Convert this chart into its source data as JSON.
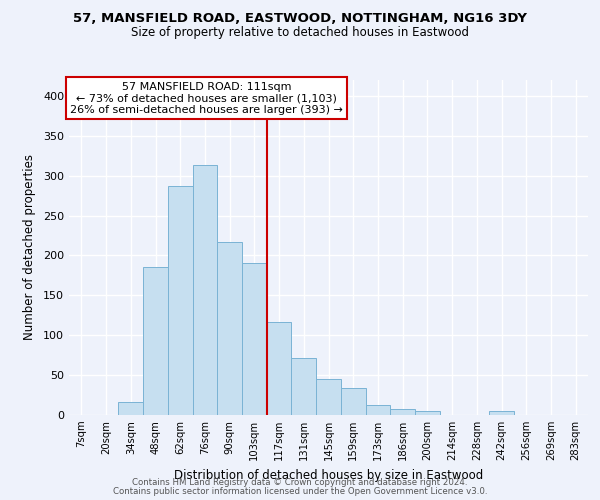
{
  "title1": "57, MANSFIELD ROAD, EASTWOOD, NOTTINGHAM, NG16 3DY",
  "title2": "Size of property relative to detached houses in Eastwood",
  "xlabel": "Distribution of detached houses by size in Eastwood",
  "ylabel": "Number of detached properties",
  "bin_labels": [
    "7sqm",
    "20sqm",
    "34sqm",
    "48sqm",
    "62sqm",
    "76sqm",
    "90sqm",
    "103sqm",
    "117sqm",
    "131sqm",
    "145sqm",
    "159sqm",
    "173sqm",
    "186sqm",
    "200sqm",
    "214sqm",
    "228sqm",
    "242sqm",
    "256sqm",
    "269sqm",
    "283sqm"
  ],
  "bar_heights": [
    0,
    0,
    16,
    185,
    287,
    314,
    217,
    191,
    116,
    72,
    45,
    34,
    12,
    7,
    5,
    0,
    0,
    5,
    0,
    0,
    0
  ],
  "bar_color": "#c6dff0",
  "bar_edge_color": "#7ab3d4",
  "vline_x_index": 7.5,
  "vline_color": "#cc0000",
  "annotation_box_text": "57 MANSFIELD ROAD: 111sqm\n← 73% of detached houses are smaller (1,103)\n26% of semi-detached houses are larger (393) →",
  "ylim": [
    0,
    420
  ],
  "yticks": [
    0,
    50,
    100,
    150,
    200,
    250,
    300,
    350,
    400
  ],
  "footer1": "Contains HM Land Registry data © Crown copyright and database right 2024.",
  "footer2": "Contains public sector information licensed under the Open Government Licence v3.0.",
  "background_color": "#eef2fb",
  "grid_color": "#ffffff",
  "box_edge_color": "#cc0000",
  "box_face_color": "#ffffff"
}
